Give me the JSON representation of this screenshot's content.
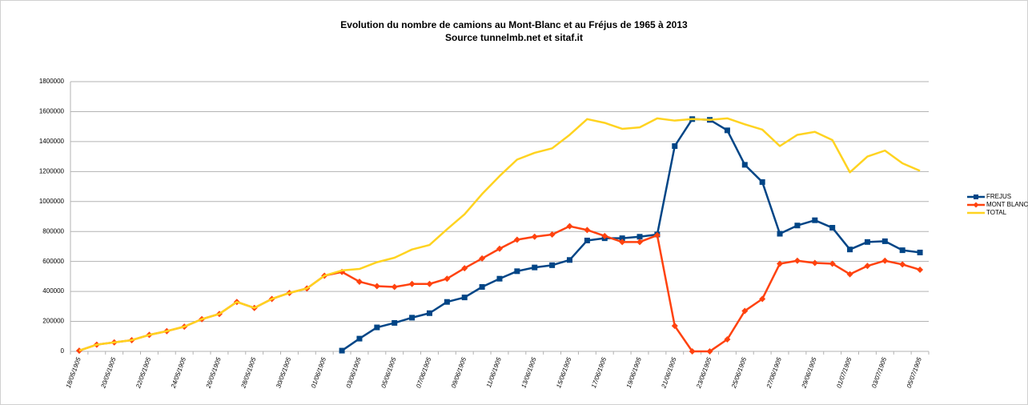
{
  "chart_data": {
    "type": "line",
    "title": "Evolution du nombre de camions au Mont-Blanc et au Fréjus de 1965 à 2013",
    "subtitle": "Source tunnelmb.net et sitaf.it",
    "categories": [
      "18/05/1905",
      null,
      "20/05/1905",
      null,
      "22/05/1905",
      null,
      "24/05/1905",
      null,
      "26/05/1905",
      null,
      "28/05/1905",
      null,
      "30/05/1905",
      null,
      "01/06/1905",
      null,
      "03/06/1905",
      null,
      "05/06/1905",
      null,
      "07/06/1905",
      null,
      "09/06/1905",
      null,
      "11/06/1905",
      null,
      "13/06/1905",
      null,
      "15/06/1905",
      null,
      "17/06/1905",
      null,
      "19/06/1905",
      null,
      "21/06/1905",
      null,
      "23/06/1905",
      null,
      "25/06/1905",
      null,
      "27/06/1905",
      null,
      "29/06/1905",
      null,
      "01/07/1905",
      null,
      "03/07/1905",
      null,
      "05/07/1905"
    ],
    "series": [
      {
        "name": "FREJUS",
        "color": "#004586",
        "marker": "square",
        "values": [
          null,
          null,
          null,
          null,
          null,
          null,
          null,
          null,
          null,
          null,
          null,
          null,
          null,
          null,
          null,
          5000,
          85000,
          160000,
          190000,
          225000,
          255000,
          330000,
          360000,
          430000,
          485000,
          535000,
          560000,
          575000,
          610000,
          740000,
          755000,
          755000,
          765000,
          780000,
          1370000,
          1550000,
          1545000,
          1475000,
          1245000,
          1130000,
          785000,
          840000,
          875000,
          825000,
          680000,
          730000,
          735000,
          675000,
          660000
        ]
      },
      {
        "name": "MONT BLANC",
        "color": "#ff420e",
        "marker": "diamond",
        "values": [
          5000,
          45000,
          60000,
          75000,
          110000,
          135000,
          165000,
          215000,
          250000,
          330000,
          290000,
          350000,
          390000,
          420000,
          505000,
          530000,
          465000,
          435000,
          430000,
          450000,
          450000,
          485000,
          555000,
          620000,
          685000,
          745000,
          765000,
          780000,
          835000,
          810000,
          770000,
          730000,
          730000,
          775000,
          170000,
          0,
          0,
          80000,
          270000,
          350000,
          585000,
          605000,
          590000,
          585000,
          515000,
          570000,
          605000,
          580000,
          545000
        ]
      },
      {
        "name": "TOTAL",
        "color": "#ffd320",
        "marker": null,
        "values": [
          5000,
          45000,
          60000,
          75000,
          110000,
          135000,
          165000,
          215000,
          250000,
          330000,
          290000,
          350000,
          390000,
          420000,
          505000,
          540000,
          550000,
          595000,
          625000,
          680000,
          710000,
          815000,
          915000,
          1050000,
          1170000,
          1280000,
          1325000,
          1355000,
          1445000,
          1550000,
          1525000,
          1485000,
          1495000,
          1555000,
          1540000,
          1550000,
          1545000,
          1555000,
          1515000,
          1480000,
          1370000,
          1445000,
          1465000,
          1410000,
          1195000,
          1300000,
          1340000,
          1255000,
          1205000
        ]
      }
    ],
    "ylim": [
      0,
      1800000
    ],
    "yticks": [
      0,
      200000,
      400000,
      600000,
      800000,
      1000000,
      1200000,
      1400000,
      1600000,
      1800000
    ],
    "grid": true,
    "legend": "right"
  }
}
